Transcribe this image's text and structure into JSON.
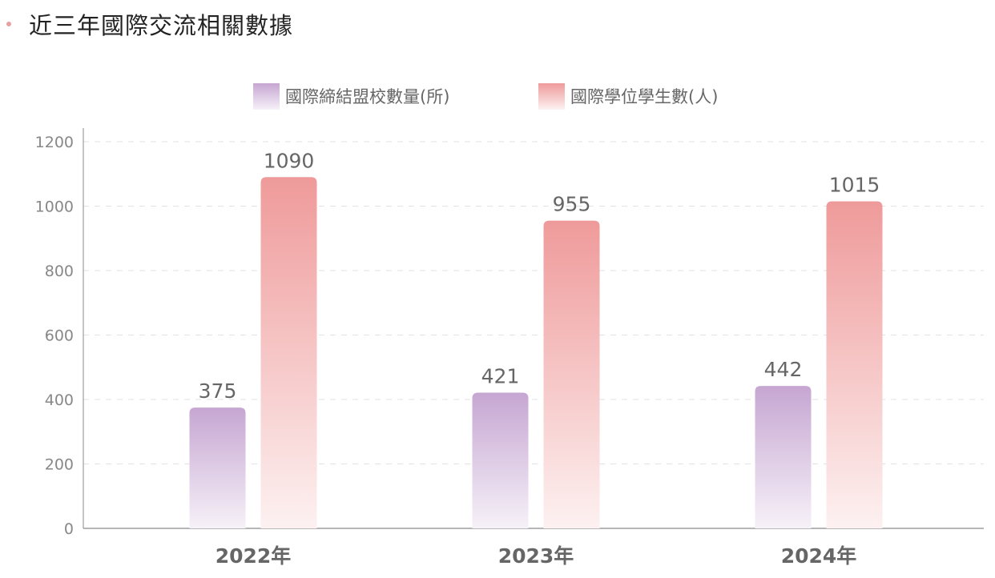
{
  "header": {
    "title": "近三年國際交流相關數據"
  },
  "chart_data": {
    "type": "bar",
    "title": "近三年國際交流相關數據",
    "categories": [
      "2022年",
      "2023年",
      "2024年"
    ],
    "series": [
      {
        "name": "國際締結盟校數量(所)",
        "values": [
          375,
          421,
          442
        ],
        "color": "#c9a9d3"
      },
      {
        "name": "國際學位學生數(人)",
        "values": [
          1090,
          955,
          1015
        ],
        "color": "#ef9a9a"
      }
    ],
    "yticks": [
      0,
      200,
      400,
      600,
      800,
      1000,
      1200
    ],
    "ylim": [
      0,
      1200
    ],
    "grid": true,
    "legend": "top-center",
    "xlabel": "",
    "ylabel": ""
  }
}
